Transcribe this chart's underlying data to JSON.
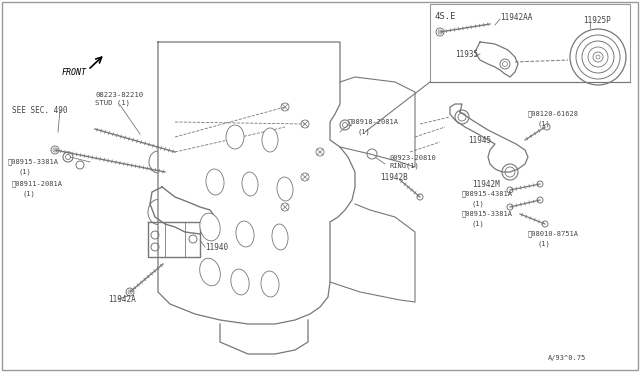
{
  "bg_color": "#ffffff",
  "line_color": "#777777",
  "text_color": "#444444",
  "border_color": "#999999",
  "diagram_note": "A/93^0.75",
  "labels": {
    "front": "FRONT",
    "see_sec": "SEE SEC. 490",
    "stud": "08223-82210\nSTUD (1)",
    "4se": "4S.E",
    "bolt1": "08918-2081A\n(1)",
    "bolt2": "08915-3381A\n(1)",
    "nut1": "08911-2081A\n(1)",
    "ring": "00923-20810\nRING(1)",
    "part11940": "11940",
    "part11942A": "11942A",
    "part11942B": "11942B",
    "part11942AA": "11942AA",
    "part11942M": "11942M",
    "part11945": "11945",
    "part11935": "11935",
    "part11925P": "11925P",
    "bolt3": "08120-61628\n(1)",
    "bolt4": "08915-4381A\n(1)",
    "bolt5": "08915-3381A\n(1)",
    "bolt6": "08010-8751A\n(1)"
  }
}
